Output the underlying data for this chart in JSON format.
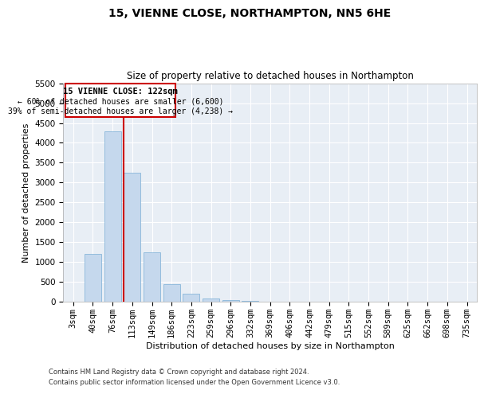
{
  "title": "15, VIENNE CLOSE, NORTHAMPTON, NN5 6HE",
  "subtitle": "Size of property relative to detached houses in Northampton",
  "xlabel": "Distribution of detached houses by size in Northampton",
  "ylabel": "Number of detached properties",
  "footer_line1": "Contains HM Land Registry data © Crown copyright and database right 2024.",
  "footer_line2": "Contains public sector information licensed under the Open Government Licence v3.0.",
  "annotation_line1": "15 VIENNE CLOSE: 122sqm",
  "annotation_line2": "← 60% of detached houses are smaller (6,600)",
  "annotation_line3": "39% of semi-detached houses are larger (4,238) →",
  "bar_color": "#c5d8ed",
  "bar_edge_color": "#7aaed6",
  "redline_color": "#cc0000",
  "annotation_box_color": "#cc0000",
  "background_color": "#e8eef5",
  "categories": [
    "3sqm",
    "40sqm",
    "76sqm",
    "113sqm",
    "149sqm",
    "186sqm",
    "223sqm",
    "259sqm",
    "296sqm",
    "332sqm",
    "369sqm",
    "406sqm",
    "442sqm",
    "479sqm",
    "515sqm",
    "552sqm",
    "589sqm",
    "625sqm",
    "662sqm",
    "698sqm",
    "735sqm"
  ],
  "values": [
    0,
    1200,
    4300,
    3250,
    1250,
    450,
    200,
    80,
    50,
    20,
    10,
    5,
    2,
    1,
    0,
    0,
    0,
    0,
    0,
    0,
    0
  ],
  "redline_x": 3.0,
  "ylim": [
    0,
    5500
  ],
  "yticks": [
    0,
    500,
    1000,
    1500,
    2000,
    2500,
    3000,
    3500,
    4000,
    4500,
    5000,
    5500
  ]
}
